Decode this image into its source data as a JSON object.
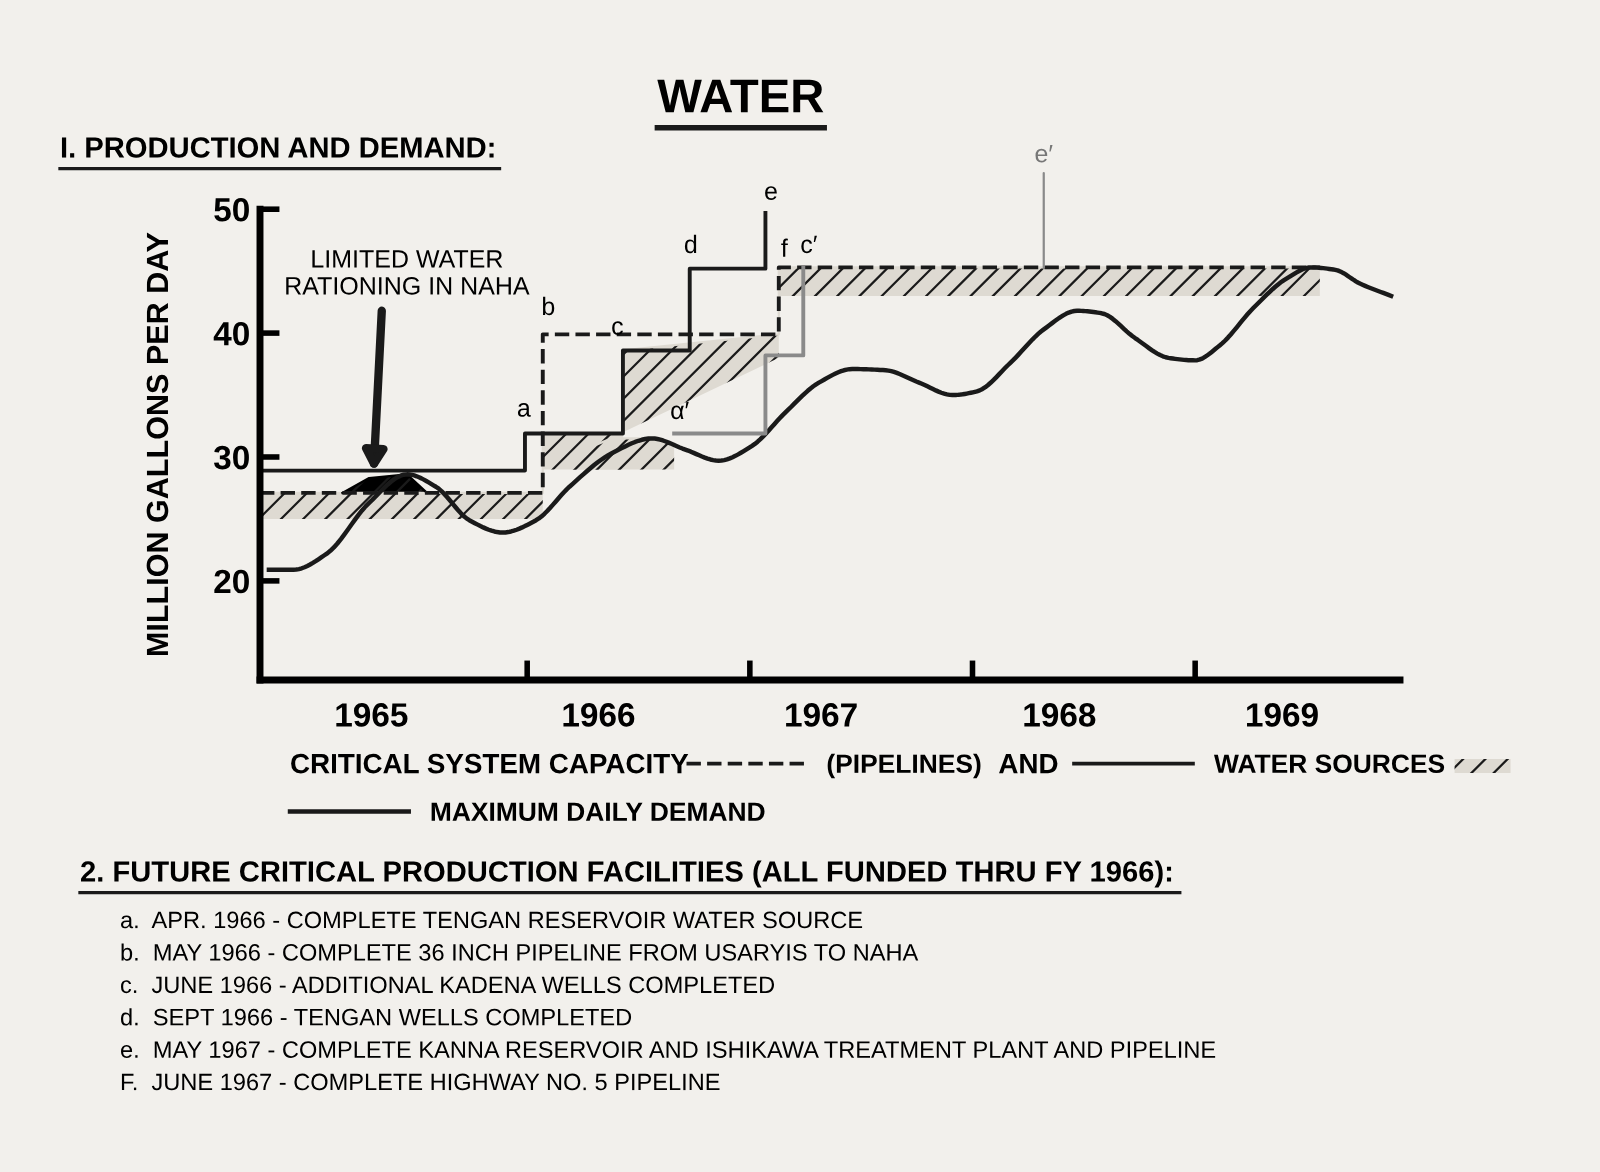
{
  "chart_data": {
    "type": "line",
    "title": "WATER",
    "subtitle": "I. PRODUCTION AND DEMAND:",
    "ylabel": "MILLION GALLONS PER DAY",
    "xlim": [
      1964.8,
      1969.92
    ],
    "ylim": [
      12,
      50
    ],
    "xticks": [
      {
        "value": 1965.3,
        "label": "1965"
      },
      {
        "value": 1966,
        "label": null
      },
      {
        "value": 1966.32,
        "label": "1966"
      },
      {
        "value": 1967,
        "label": null
      },
      {
        "value": 1967.32,
        "label": "1967"
      },
      {
        "value": 1968,
        "label": null
      },
      {
        "value": 1968.39,
        "label": "1968"
      },
      {
        "value": 1969,
        "label": null
      },
      {
        "value": 1969.39,
        "label": "1969"
      }
    ],
    "yticks": [
      20,
      30,
      40,
      50
    ],
    "grid": false,
    "legend": "bottom",
    "series": [
      {
        "type": "line",
        "color": "#dedad2",
        "x": [
          1964.8,
          1966.07,
          1966.07,
          1966.43,
          1966.43,
          1967.13,
          1967.13,
          1969.56
        ],
        "values": [
          27.1,
          27.1,
          31.9,
          31.9,
          38.6,
          39.9,
          45.3,
          45.3
        ],
        "upper": [
          27.1,
          27.1,
          31.9,
          31.9,
          38.6,
          39.9,
          45.3,
          45.3
        ],
        "lower": [
          25.0,
          25.0,
          29.0,
          29.0,
          32.0,
          38.0,
          43.0,
          43.0
        ]
      },
      {
        "type": "line",
        "color": "#dedad2",
        "x": [
          1966.2,
          1966.38,
          1966.56,
          1966.66
        ],
        "values": [
          30.2,
          31.5,
          31.5,
          31.1
        ],
        "upper": [
          30.2,
          31.5,
          31.5,
          31.1
        ],
        "lower": [
          29.0,
          29.0,
          29.0,
          29.0
        ]
      },
      {
        "type": "line",
        "color": "#000000",
        "x": [
          1965.17,
          1965.29,
          1965.46,
          1965.55
        ],
        "values": [
          27.1,
          28.3,
          28.6,
          27.1
        ],
        "upper": [
          27.1,
          28.3,
          28.6,
          27.1
        ],
        "lower": [
          27.1,
          27.1,
          27.1,
          27.1
        ]
      },
      {
        "type": "line",
        "name": "MAXIMUM DAILY DEMAND",
        "color": "#1a1a1a",
        "x": [
          1964.84,
          1964.95,
          1965.1,
          1965.29,
          1965.46,
          1965.59,
          1965.74,
          1965.89,
          1966.04,
          1966.19,
          1966.38,
          1966.56,
          1966.71,
          1966.86,
          1967.01,
          1967.16,
          1967.31,
          1967.46,
          1967.61,
          1967.76,
          1967.91,
          1968.02,
          1968.17,
          1968.32,
          1968.47,
          1968.58,
          1968.73,
          1968.88,
          1969.0,
          1969.11,
          1969.26,
          1969.41,
          1969.52,
          1969.63,
          1969.74,
          1969.88
        ],
        "values": [
          20.9,
          20.9,
          22.2,
          26.3,
          28.6,
          27.6,
          24.9,
          23.9,
          24.9,
          27.6,
          30.3,
          31.5,
          30.6,
          29.7,
          30.9,
          33.6,
          36.0,
          37.1,
          37.0,
          36.0,
          35.0,
          35.3,
          37.6,
          40.3,
          41.8,
          41.6,
          39.6,
          38.0,
          37.8,
          39.0,
          42.0,
          44.4,
          45.3,
          45.1,
          44.0,
          43.0
        ]
      },
      {
        "type": "step",
        "name": "(PIPELINES)",
        "color": "#1a1a1a",
        "line_style": "dashed",
        "x": [
          1964.8,
          1966.07,
          1967.13,
          1969.56
        ],
        "values": [
          27.1,
          39.9,
          45.3,
          45.3
        ]
      },
      {
        "type": "step",
        "name": "WATER SOURCES",
        "color": "#1a1a1a",
        "line_style": "solid",
        "x": [
          1964.8,
          1965.99,
          1966.43,
          1966.73,
          1967.07
        ],
        "values": [
          28.9,
          31.9,
          38.6,
          45.2,
          49.7
        ]
      },
      {
        "type": "step",
        "color": "#8a8a8a",
        "line_style": "solid",
        "x": [
          1966.66,
          1967.07,
          1967.24
        ],
        "values": [
          31.9,
          38.2,
          45.3
        ]
      }
    ],
    "annotations": [
      {
        "text": "LIMITED WATER\nRATIONING IN NAHA",
        "x": 1965.31,
        "y": 28.8
      },
      {
        "text": "a",
        "x": 1965.96,
        "y": 32.4
      },
      {
        "text": "b",
        "x": 1966.07,
        "y": 40.6
      },
      {
        "text": "c",
        "x": 1966.38,
        "y": 39.0
      },
      {
        "text": "d",
        "x": 1966.71,
        "y": 45.6
      },
      {
        "text": "e",
        "x": 1967.07,
        "y": 49.9
      },
      {
        "text": "f",
        "x": 1967.13,
        "y": 45.3
      },
      {
        "text": "c′",
        "x": 1967.24,
        "y": 45.6
      },
      {
        "text": "α′",
        "x": 1966.66,
        "y": 32.2
      },
      {
        "text": "e′",
        "x": 1968.32,
        "y": 45.3
      },
      "CRITICAL SYSTEM CAPACITY",
      "AND",
      "2. FUTURE CRITICAL PRODUCTION FACILITIES (ALL FUNDED THRU FY 1966):",
      "a.  APR. 1966 - COMPLETE TENGAN RESERVOIR WATER SOURCE",
      "b.  MAY 1966 - COMPLETE 36 INCH PIPELINE FROM USARYIS TO NAHA",
      "c.  JUNE 1966 - ADDITIONAL KADENA WELLS COMPLETED",
      "d.  SEPT 1966 - TENGAN WELLS COMPLETED",
      "e.  MAY 1967 - COMPLETE KANNA RESERVOIR AND ISHIKAWA TREATMENT PLANT AND PIPELINE",
      "F.  JUNE 1967 - COMPLETE HIGHWAY NO. 5 PIPELINE"
    ]
  }
}
